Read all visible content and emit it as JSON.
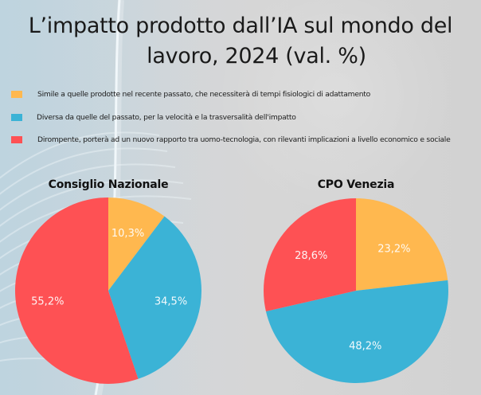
{
  "title": {
    "line1": "L’impatto prodotto dall’IA sul mondo del",
    "line2": "lavoro, 2024 (val. %)"
  },
  "legend": [
    {
      "label": "Simile a quelle prodotte nel recente passato, che necessiterà di tempi fisiologici di adattamento",
      "color": "#FFB84F"
    },
    {
      "label": "Diversa da quelle del passato, per la velocità e la trasversalità dell'impatto",
      "color": "#3BB3D6"
    },
    {
      "label": "Dirompente, porterà ad un nuovo rapporto tra uomo-tecnologia, con rilevanti implicazioni a livello economico e sociale",
      "color": "#FE5154"
    }
  ],
  "charts": [
    {
      "title": "Consiglio Nazionale",
      "slices": [
        {
          "label": "10,3%",
          "value": 10.3,
          "color": "#FFB84F"
        },
        {
          "label": "34,5%",
          "value": 34.5,
          "color": "#3BB3D6"
        },
        {
          "label": "55,2%",
          "value": 55.2,
          "color": "#FE5154"
        }
      ]
    },
    {
      "title": "CPO Venezia",
      "slices": [
        {
          "label": "23,2%",
          "value": 23.2,
          "color": "#FFB84F"
        },
        {
          "label": "48,2%",
          "value": 48.2,
          "color": "#3BB3D6"
        },
        {
          "label": "28,6%",
          "value": 28.6,
          "color": "#FE5154"
        }
      ]
    }
  ],
  "chart_data": [
    {
      "type": "pie",
      "title": "Consiglio Nazionale",
      "categories": [
        "Simile a quelle prodotte nel recente passato, che necessiterà di tempi fisiologici di adattamento",
        "Diversa da quelle del passato, per la velocità e la trasversalità dell'impatto",
        "Dirompente, porterà ad un nuovo rapporto tra uomo-tecnologia, con rilevanti implicazioni a livello economico e sociale"
      ],
      "values": [
        10.3,
        34.5,
        55.2
      ],
      "colors": [
        "#FFB84F",
        "#3BB3D6",
        "#FE5154"
      ],
      "suptitle": "L’impatto prodotto dall’IA sul mondo del lavoro, 2024 (val. %)",
      "legend_position": "top"
    },
    {
      "type": "pie",
      "title": "CPO Venezia",
      "categories": [
        "Simile a quelle prodotte nel recente passato, che necessiterà di tempi fisiologici di adattamento",
        "Diversa da quelle del passato, per la velocità e la trasversalità dell'impatto",
        "Dirompente, porterà ad un nuovo rapporto tra uomo-tecnologia, con rilevanti implicazioni a livello economico e sociale"
      ],
      "values": [
        23.2,
        48.2,
        28.6
      ],
      "colors": [
        "#FFB84F",
        "#3BB3D6",
        "#FE5154"
      ],
      "suptitle": "L’impatto prodotto dall’IA sul mondo del lavoro, 2024 (val. %)",
      "legend_position": "top"
    }
  ]
}
